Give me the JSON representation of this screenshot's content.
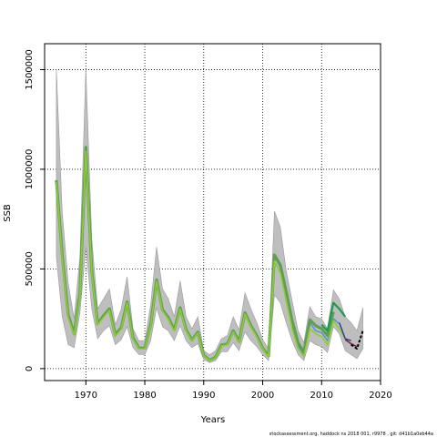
{
  "chart_data": {
    "type": "line",
    "title": "",
    "xlabel": "Years",
    "ylabel": "SSB",
    "xlim": [
      1963,
      2020
    ],
    "ylim": [
      -60000,
      1630000
    ],
    "x_ticks": [
      1970,
      1980,
      1990,
      2000,
      2010,
      2020
    ],
    "y_ticks": [
      0,
      500000,
      1000000,
      1500000
    ],
    "grid": "dotted",
    "footer": "stockassessment.org,  haddock  ns  2018  001,  r9978  ,  git:  d41b1a0eb44a",
    "colors": {
      "band": "#bebebe",
      "band_edge": "#9a9a9a",
      "base": "#4a8fd8",
      "highlight": "#8fcc33",
      "mid": "#5f9f55",
      "retro": [
        "#3fa7d6",
        "#1f9a4c",
        "#2b3a8f",
        "#7a2a40",
        "#000000"
      ]
    },
    "band": {
      "x": [
        1965,
        1966,
        1967,
        1968,
        1969,
        1970,
        1971,
        1972,
        1973,
        1974,
        1975,
        1976,
        1977,
        1978,
        1979,
        1980,
        1981,
        1982,
        1983,
        1984,
        1985,
        1986,
        1987,
        1988,
        1989,
        1990,
        1991,
        1992,
        1993,
        1994,
        1995,
        1996,
        1997,
        1998,
        1999,
        2000,
        2001,
        2002,
        2003,
        2004,
        2005,
        2006,
        2007,
        2008,
        2009,
        2010,
        2011,
        2012,
        2013,
        2014,
        2015,
        2016,
        2017
      ],
      "lower": [
        560000,
        260000,
        120000,
        105000,
        280000,
        610000,
        300000,
        150000,
        190000,
        215000,
        120000,
        145000,
        210000,
        105000,
        70000,
        70000,
        140000,
        305000,
        210000,
        190000,
        140000,
        215000,
        140000,
        105000,
        125000,
        45000,
        30000,
        40000,
        85000,
        85000,
        130000,
        90000,
        185000,
        140000,
        110000,
        70000,
        40000,
        370000,
        330000,
        230000,
        140000,
        70000,
        40000,
        140000,
        120000,
        110000,
        80000,
        210000,
        175000,
        90000,
        70000,
        50000,
        100000
      ],
      "upper": [
        1500000,
        780000,
        430000,
        250000,
        560000,
        1500000,
        650000,
        300000,
        350000,
        400000,
        220000,
        300000,
        460000,
        200000,
        140000,
        140000,
        320000,
        610000,
        400000,
        350000,
        260000,
        440000,
        260000,
        200000,
        260000,
        90000,
        70000,
        90000,
        150000,
        165000,
        260000,
        195000,
        380000,
        300000,
        230000,
        145000,
        100000,
        790000,
        710000,
        490000,
        340000,
        190000,
        130000,
        310000,
        260000,
        250000,
        200000,
        395000,
        350000,
        260000,
        230000,
        190000,
        305000
      ]
    },
    "series": [
      {
        "x": [
          1965,
          1966,
          1967,
          1968,
          1969,
          1970,
          1971,
          1972,
          1973,
          1974,
          1975,
          1976,
          1977,
          1978,
          1979,
          1980,
          1981,
          1982,
          1983,
          1984,
          1985,
          1986,
          1987,
          1988,
          1989,
          1990,
          1991,
          1992,
          1993,
          1994,
          1995,
          1996,
          1997,
          1998,
          1999,
          2000,
          2001,
          2002,
          2003,
          2004,
          2005,
          2006,
          2007,
          2008,
          2009,
          2010,
          2011,
          2012,
          2013
        ],
        "values": [
          940000,
          560000,
          260000,
          170000,
          370000,
          1100000,
          480000,
          220000,
          260000,
          295000,
          165000,
          200000,
          330000,
          150000,
          100000,
          100000,
          215000,
          440000,
          290000,
          250000,
          190000,
          300000,
          190000,
          140000,
          180000,
          65000,
          40000,
          55000,
          115000,
          120000,
          185000,
          130000,
          275000,
          210000,
          160000,
          100000,
          60000,
          560000,
          510000,
          370000,
          220000,
          115000,
          70000,
          230000,
          190000,
          180000,
          140000,
          250000,
          225000
        ]
      },
      {
        "x": [
          1965,
          1966,
          1967,
          1968,
          1969,
          1970,
          1971,
          1972,
          1973,
          1974,
          1975,
          1976,
          1977,
          1978,
          1979,
          1980,
          1981,
          1982,
          1983,
          1984,
          1985,
          1986,
          1987,
          1988,
          1989,
          1990,
          1991,
          1992,
          1993,
          1994,
          1995,
          1996,
          1997,
          1998,
          1999,
          2000,
          2001,
          2002,
          2003,
          2004,
          2005,
          2006,
          2007,
          2008,
          2009,
          2010,
          2011,
          2012
        ],
        "values": [
          945000,
          570000,
          270000,
          175000,
          380000,
          1110000,
          490000,
          225000,
          265000,
          300000,
          170000,
          205000,
          335000,
          155000,
          103000,
          103000,
          220000,
          445000,
          295000,
          255000,
          195000,
          305000,
          195000,
          143000,
          183000,
          67000,
          42000,
          57000,
          118000,
          123000,
          190000,
          135000,
          280000,
          215000,
          165000,
          103000,
          63000,
          570000,
          520000,
          385000,
          240000,
          130000,
          82000,
          245000,
          215000,
          200000,
          165000,
          285000
        ]
      },
      {
        "x": [
          1965,
          1966,
          1967,
          1968,
          1969,
          1970,
          1971,
          1972,
          1973,
          1974,
          1975,
          1976,
          1977,
          1978,
          1979,
          1980,
          1981,
          1982,
          1983,
          1984,
          1985,
          1986,
          1987,
          1988,
          1989,
          1990,
          1991,
          1992,
          1993,
          1994,
          1995,
          1996,
          1997,
          1998,
          1999,
          2000,
          2001,
          2002,
          2003,
          2004,
          2005,
          2006,
          2007,
          2008,
          2009,
          2010,
          2011,
          2012,
          2013,
          2014
        ],
        "values": [
          935000,
          550000,
          255000,
          168000,
          365000,
          1090000,
          475000,
          218000,
          258000,
          292000,
          163000,
          198000,
          328000,
          148000,
          99000,
          99000,
          212000,
          437000,
          288000,
          248000,
          188000,
          298000,
          188000,
          139000,
          178000,
          64000,
          40000,
          54000,
          114000,
          119000,
          184000,
          129000,
          273000,
          208000,
          158000,
          99000,
          58000,
          540000,
          480000,
          340000,
          200000,
          100000,
          60000,
          200000,
          175000,
          160000,
          120000,
          240000,
          200000,
          150000
        ]
      },
      {
        "x": [
          2010,
          2011,
          2012,
          2013,
          2014
        ],
        "values": [
          220000,
          190000,
          330000,
          300000,
          260000
        ]
      },
      {
        "x": [
          2013,
          2014,
          2015
        ],
        "values": [
          230000,
          150000,
          140000
        ]
      },
      {
        "x": [
          2014,
          2015,
          2016
        ],
        "values": [
          145000,
          125000,
          110000
        ]
      },
      {
        "x": [
          2015,
          2016,
          2017
        ],
        "values": [
          120000,
          100000,
          190000
        ]
      }
    ]
  }
}
